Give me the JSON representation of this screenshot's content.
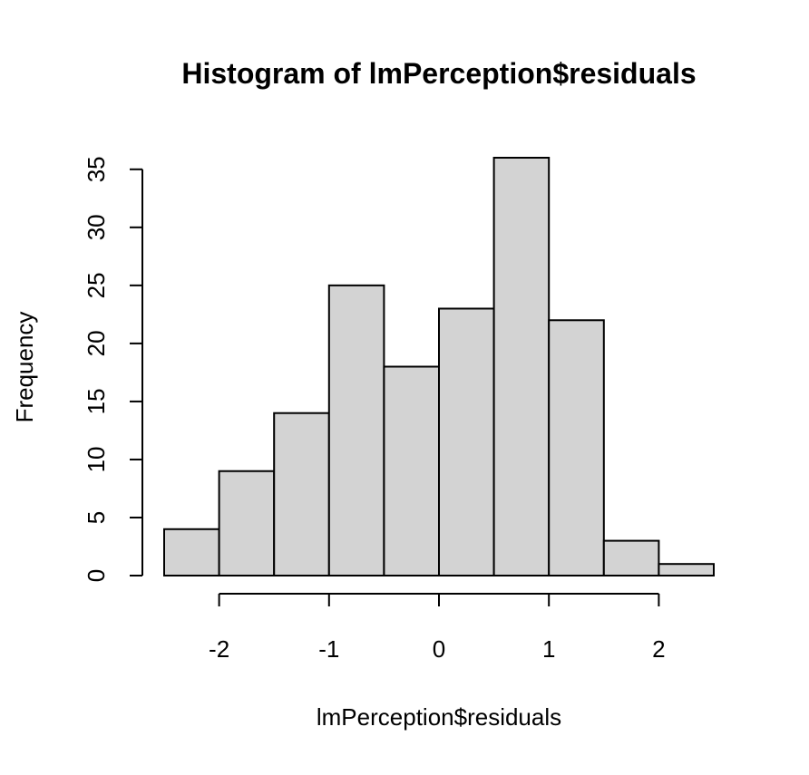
{
  "chart_data": {
    "type": "bar",
    "title": "Histogram of lmPerception$residuals",
    "xlabel": "lmPerception$residuals",
    "ylabel": "Frequency",
    "bins": [
      {
        "start": -2.5,
        "end": -2.0,
        "count": 4
      },
      {
        "start": -2.0,
        "end": -1.5,
        "count": 9
      },
      {
        "start": -1.5,
        "end": -1.0,
        "count": 14
      },
      {
        "start": -1.0,
        "end": -0.5,
        "count": 25
      },
      {
        "start": -0.5,
        "end": 0.0,
        "count": 18
      },
      {
        "start": 0.0,
        "end": 0.5,
        "count": 23
      },
      {
        "start": 0.5,
        "end": 1.0,
        "count": 36
      },
      {
        "start": 1.0,
        "end": 1.5,
        "count": 22
      },
      {
        "start": 1.5,
        "end": 2.0,
        "count": 3
      },
      {
        "start": 2.0,
        "end": 2.5,
        "count": 1
      }
    ],
    "xticks": [
      -2,
      -1,
      0,
      1,
      2
    ],
    "xtick_labels": [
      "-2",
      "-1",
      "0",
      "1",
      "2"
    ],
    "yticks": [
      0,
      5,
      10,
      15,
      20,
      25,
      30,
      35
    ],
    "ytick_labels": [
      "0",
      "5",
      "10",
      "15",
      "20",
      "25",
      "30",
      "35"
    ],
    "xlim": [
      -2.5,
      2.5
    ],
    "ylim": [
      0,
      36
    ],
    "grid": false,
    "bar_fill": "#d3d3d3",
    "bar_stroke": "#000000"
  }
}
